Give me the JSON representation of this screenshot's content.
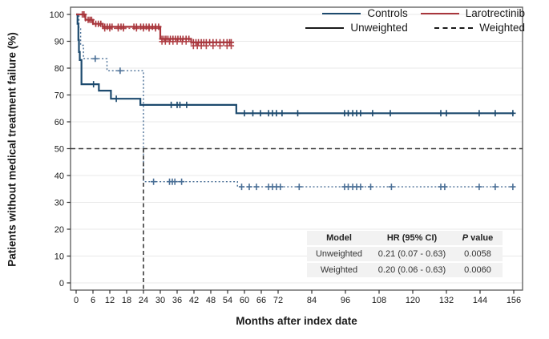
{
  "figure": {
    "x_axis_title": "Months after index date",
    "y_axis_title": "Patients without medical treatment failure (%)"
  },
  "legend": {
    "items": [
      {
        "label": "Controls",
        "color": "#1d4a6e",
        "dash": "solid"
      },
      {
        "label": "Larotrectinib",
        "color": "#a8363c",
        "dash": "solid"
      },
      {
        "label": "Unweighted",
        "color": "#1a1a1a",
        "dash": "solid"
      },
      {
        "label": "Weighted",
        "color": "#1a1a1a",
        "dash": "dashed"
      }
    ]
  },
  "stats_table": {
    "headers": [
      "Model",
      "HR (95% CI)",
      "P value"
    ],
    "rows": [
      [
        "Unweighted",
        "0.21 (0.07 - 0.63)",
        "0.0058"
      ],
      [
        "Weighted",
        "0.20 (0.06 - 0.63)",
        "0.0060"
      ]
    ]
  },
  "chart_data": {
    "type": "line",
    "subtype": "kaplan-meier-step",
    "title": "",
    "xlabel": "Months after index date",
    "ylabel": "Patients without medical treatment failure (%)",
    "xlim": [
      0,
      156
    ],
    "ylim": [
      0,
      100
    ],
    "x_ticks": [
      0,
      6,
      12,
      18,
      24,
      30,
      36,
      42,
      48,
      54,
      60,
      66,
      72,
      84,
      96,
      108,
      120,
      132,
      144,
      156
    ],
    "y_ticks": [
      0,
      10,
      20,
      30,
      40,
      50,
      60,
      70,
      80,
      90,
      100
    ],
    "grid": "horizontal",
    "grid_color": "#e9e9e9",
    "frame_color": "#595959",
    "legend_position": "top-right-inside",
    "reference_lines": {
      "horizontal_y": 50,
      "vertical_x": 24,
      "style": "dashed",
      "color": "#3a3a3a"
    },
    "series": [
      {
        "id": "controls-weighted",
        "name": "Controls (Weighted)",
        "color": "#4a6f96",
        "line_style": "dotted",
        "end_month": 156,
        "points": [
          [
            0,
            100
          ],
          [
            1.0,
            95
          ],
          [
            1.6,
            88.5
          ],
          [
            2.6,
            83.5
          ],
          [
            11,
            79
          ],
          [
            24,
            37.7
          ],
          [
            57.5,
            35.8
          ]
        ],
        "censors": [
          [
            6.8,
            83.5
          ],
          [
            15.7,
            79
          ],
          [
            27.6,
            37.7
          ],
          [
            33.3,
            37.7
          ],
          [
            34.3,
            37.7
          ],
          [
            35.2,
            37.7
          ],
          [
            37.6,
            37.7
          ],
          [
            59,
            35.8
          ],
          [
            61.7,
            35.8
          ],
          [
            64.3,
            35.8
          ],
          [
            68.6,
            35.8
          ],
          [
            70,
            35.8
          ],
          [
            71.4,
            35.8
          ],
          [
            72.8,
            35.8
          ],
          [
            79.5,
            35.8
          ],
          [
            95.7,
            35.8
          ],
          [
            97,
            35.8
          ],
          [
            98.6,
            35.8
          ],
          [
            100,
            35.8
          ],
          [
            101.4,
            35.8
          ],
          [
            105,
            35.8
          ],
          [
            112.4,
            35.8
          ],
          [
            130,
            35.8
          ],
          [
            131.4,
            35.8
          ],
          [
            143.7,
            35.8
          ],
          [
            149.4,
            35.8
          ],
          [
            155.7,
            35.8
          ]
        ]
      },
      {
        "id": "larotrectinib-weighted",
        "name": "Larotrectinib (Weighted)",
        "color": "#b4474c",
        "line_style": "dotted",
        "end_month": 55.5,
        "points": [
          [
            0,
            100
          ],
          [
            3.3,
            97.6
          ],
          [
            6.0,
            96.0
          ],
          [
            9.5,
            94.8
          ],
          [
            30,
            89.9
          ],
          [
            41,
            88.3
          ]
        ],
        "censors": [
          [
            10.2,
            94.8
          ],
          [
            12.0,
            94.8
          ],
          [
            15.0,
            94.8
          ],
          [
            16.9,
            94.8
          ],
          [
            21.5,
            94.8
          ],
          [
            24.0,
            94.8
          ],
          [
            26.0,
            94.8
          ],
          [
            28.3,
            94.8
          ],
          [
            30.6,
            89.9
          ],
          [
            31.8,
            89.9
          ],
          [
            33.3,
            89.9
          ],
          [
            34.5,
            89.9
          ],
          [
            36.0,
            89.9
          ],
          [
            37.8,
            89.9
          ],
          [
            39.2,
            89.9
          ],
          [
            41.8,
            88.3
          ],
          [
            43.2,
            88.3
          ],
          [
            44.6,
            88.3
          ],
          [
            46.4,
            88.3
          ],
          [
            48.8,
            88.3
          ],
          [
            51.3,
            88.3
          ],
          [
            53.8,
            88.3
          ],
          [
            55.3,
            88.3
          ]
        ]
      },
      {
        "id": "controls-unweighted",
        "name": "Controls (Unweighted)",
        "color": "#1d4a6e",
        "line_style": "solid",
        "end_month": 156,
        "points": [
          [
            0,
            100
          ],
          [
            0.5,
            96.5
          ],
          [
            0.8,
            90.5
          ],
          [
            1.0,
            86
          ],
          [
            1.3,
            83
          ],
          [
            1.9,
            74
          ],
          [
            8.1,
            71.6
          ],
          [
            12.4,
            68.6
          ],
          [
            22.9,
            66.3
          ],
          [
            57.1,
            63.2
          ]
        ],
        "censors": [
          [
            6.2,
            74
          ],
          [
            14.3,
            68.6
          ],
          [
            33.9,
            66.3
          ],
          [
            36.0,
            66.3
          ],
          [
            37.0,
            66.3
          ],
          [
            39.4,
            66.3
          ],
          [
            60,
            63.2
          ],
          [
            63,
            63.2
          ],
          [
            65.7,
            63.2
          ],
          [
            68.6,
            63.2
          ],
          [
            70,
            63.2
          ],
          [
            71.4,
            63.2
          ],
          [
            73.4,
            63.2
          ],
          [
            79,
            63.2
          ],
          [
            95.7,
            63.2
          ],
          [
            97,
            63.2
          ],
          [
            98.6,
            63.2
          ],
          [
            100,
            63.2
          ],
          [
            101.4,
            63.2
          ],
          [
            105.7,
            63.2
          ],
          [
            112,
            63.2
          ],
          [
            130,
            63.2
          ],
          [
            132,
            63.2
          ],
          [
            143.7,
            63.2
          ],
          [
            149.4,
            63.2
          ],
          [
            155.7,
            63.2
          ]
        ]
      },
      {
        "id": "larotrectinib-unweighted",
        "name": "Larotrectinib (Unweighted)",
        "color": "#a8363c",
        "line_style": "solid",
        "end_month": 55.5,
        "points": [
          [
            0,
            100
          ],
          [
            3.3,
            98
          ],
          [
            6.0,
            96.5
          ],
          [
            9.5,
            95.4
          ],
          [
            30,
            90.9
          ],
          [
            41,
            89.6
          ]
        ],
        "censors": [
          [
            2.2,
            100
          ],
          [
            2.8,
            100
          ],
          [
            4.3,
            98
          ],
          [
            4.9,
            98
          ],
          [
            5.5,
            98
          ],
          [
            7.0,
            96.5
          ],
          [
            7.9,
            96.5
          ],
          [
            8.8,
            96.5
          ],
          [
            10.2,
            95.4
          ],
          [
            11.1,
            95.4
          ],
          [
            12.0,
            95.4
          ],
          [
            12.8,
            95.4
          ],
          [
            15.0,
            95.4
          ],
          [
            16.0,
            95.4
          ],
          [
            16.9,
            95.4
          ],
          [
            20.6,
            95.4
          ],
          [
            21.5,
            95.4
          ],
          [
            23.0,
            95.4
          ],
          [
            24.0,
            95.4
          ],
          [
            25.0,
            95.4
          ],
          [
            26.0,
            95.4
          ],
          [
            27.2,
            95.4
          ],
          [
            28.3,
            95.4
          ],
          [
            29.4,
            95.4
          ],
          [
            30.6,
            90.9
          ],
          [
            31.3,
            90.9
          ],
          [
            32.0,
            90.9
          ],
          [
            32.7,
            90.9
          ],
          [
            33.6,
            90.9
          ],
          [
            34.5,
            90.9
          ],
          [
            35.4,
            90.9
          ],
          [
            36.3,
            90.9
          ],
          [
            37.2,
            90.9
          ],
          [
            38.1,
            90.9
          ],
          [
            39.2,
            90.9
          ],
          [
            40.2,
            90.9
          ],
          [
            41.8,
            89.6
          ],
          [
            42.7,
            89.6
          ],
          [
            43.6,
            89.6
          ],
          [
            44.6,
            89.6
          ],
          [
            45.5,
            89.6
          ],
          [
            46.4,
            89.6
          ],
          [
            47.6,
            89.6
          ],
          [
            48.8,
            89.6
          ],
          [
            50.0,
            89.6
          ],
          [
            51.3,
            89.6
          ],
          [
            52.6,
            89.6
          ],
          [
            53.8,
            89.6
          ],
          [
            54.7,
            89.6
          ],
          [
            55.3,
            89.6
          ]
        ]
      }
    ]
  }
}
